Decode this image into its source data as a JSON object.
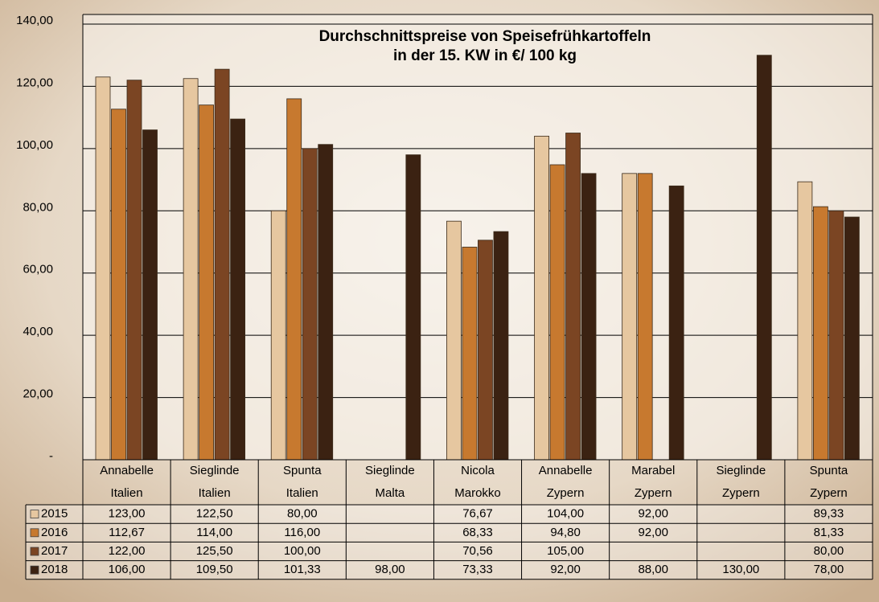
{
  "chart_data": {
    "type": "bar",
    "title": [
      "Durchschnittspreise von Speisefrühkartoffeln",
      "in der 15. KW in €/ 100 kg"
    ],
    "categories": [
      [
        "Annabelle",
        "Italien"
      ],
      [
        "Sieglinde",
        "Italien"
      ],
      [
        "Spunta",
        "Italien"
      ],
      [
        "Sieglinde",
        "Malta"
      ],
      [
        "Nicola",
        "Marokko"
      ],
      [
        "Annabelle",
        "Zypern"
      ],
      [
        "Marabel",
        "Zypern"
      ],
      [
        "Sieglinde",
        "Zypern"
      ],
      [
        "Spunta",
        "Zypern"
      ]
    ],
    "series": [
      {
        "name": "2015",
        "color": "#e6c7a0",
        "values": [
          123.0,
          122.5,
          80.0,
          null,
          76.67,
          104.0,
          92.0,
          null,
          89.33
        ],
        "value_labels": [
          "123,00",
          "122,50",
          "80,00",
          null,
          "76,67",
          "104,00",
          "92,00",
          null,
          "89,33"
        ]
      },
      {
        "name": "2016",
        "color": "#c7792f",
        "values": [
          112.67,
          114.0,
          116.0,
          null,
          68.33,
          94.8,
          92.0,
          null,
          81.33
        ],
        "value_labels": [
          "112,67",
          "114,00",
          "116,00",
          null,
          "68,33",
          "94,80",
          "92,00",
          null,
          "81,33"
        ]
      },
      {
        "name": "2017",
        "color": "#7b4523",
        "values": [
          122.0,
          125.5,
          100.0,
          null,
          70.56,
          105.0,
          null,
          null,
          80.0
        ],
        "value_labels": [
          "122,00",
          "125,50",
          "100,00",
          null,
          "70,56",
          "105,00",
          null,
          null,
          "80,00"
        ]
      },
      {
        "name": "2018",
        "color": "#3b2212",
        "values": [
          106.0,
          109.5,
          101.33,
          98.0,
          73.33,
          92.0,
          88.0,
          130.0,
          78.0
        ],
        "value_labels": [
          "106,00",
          "109,50",
          "101,33",
          "98,00",
          "73,33",
          "92,00",
          "88,00",
          "130,00",
          "78,00"
        ]
      }
    ],
    "ylim": [
      0,
      140
    ],
    "yticks": [
      {
        "value": 0,
        "label": "-"
      },
      {
        "value": 20,
        "label": "20,00"
      },
      {
        "value": 40,
        "label": "40,00"
      },
      {
        "value": 60,
        "label": "60,00"
      },
      {
        "value": 80,
        "label": "80,00"
      },
      {
        "value": 100,
        "label": "100,00"
      },
      {
        "value": 120,
        "label": "120,00"
      },
      {
        "value": 140,
        "label": "140,00"
      }
    ],
    "grid": true
  }
}
